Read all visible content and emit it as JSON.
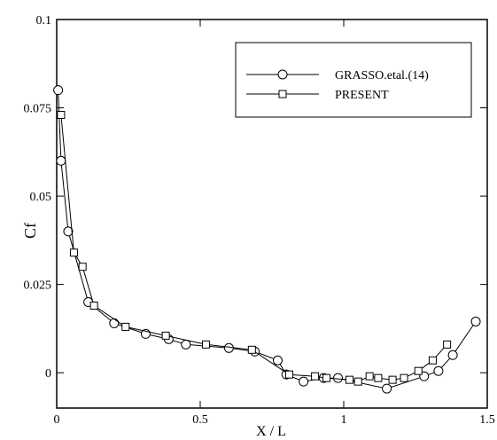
{
  "chart_data": {
    "type": "line",
    "xlabel": "X / L",
    "ylabel": "Cf",
    "xlim": [
      0,
      1.5
    ],
    "ylim": [
      -0.01,
      0.1
    ],
    "xticks": [
      0,
      0.5,
      1,
      1.5
    ],
    "xtick_labels": [
      "0",
      "0.5",
      "1",
      "1.5"
    ],
    "yticks": [
      0,
      0.025,
      0.05,
      0.075,
      0.1
    ],
    "ytick_labels": [
      "0",
      "0.025",
      "0.05",
      "0.075",
      "0.1"
    ],
    "grid": false,
    "legend_position": "top-right",
    "series": [
      {
        "name": "GRASSO.etal.(14)",
        "marker": "circle",
        "color": "#000000",
        "x": [
          0.005,
          0.015,
          0.04,
          0.11,
          0.2,
          0.31,
          0.39,
          0.45,
          0.6,
          0.69,
          0.77,
          0.8,
          0.86,
          0.93,
          0.98,
          1.15,
          1.28,
          1.33,
          1.38,
          1.46
        ],
        "y": [
          0.08,
          0.06,
          0.04,
          0.02,
          0.014,
          0.011,
          0.0095,
          0.008,
          0.007,
          0.006,
          0.0035,
          -0.0005,
          -0.0025,
          -0.0015,
          -0.0015,
          -0.0045,
          -0.001,
          0.0005,
          0.005,
          0.0145
        ]
      },
      {
        "name": "PRESENT",
        "marker": "square",
        "color": "#000000",
        "x": [
          0.015,
          0.06,
          0.09,
          0.13,
          0.24,
          0.38,
          0.52,
          0.68,
          0.81,
          0.9,
          0.94,
          1.02,
          1.05,
          1.09,
          1.12,
          1.17,
          1.21,
          1.26,
          1.31,
          1.36
        ],
        "y": [
          0.073,
          0.034,
          0.03,
          0.019,
          0.013,
          0.0105,
          0.008,
          0.0065,
          -0.0005,
          -0.001,
          -0.0015,
          -0.002,
          -0.0025,
          -0.001,
          -0.0015,
          -0.002,
          -0.0015,
          0.0005,
          0.0035,
          0.008
        ]
      }
    ]
  }
}
